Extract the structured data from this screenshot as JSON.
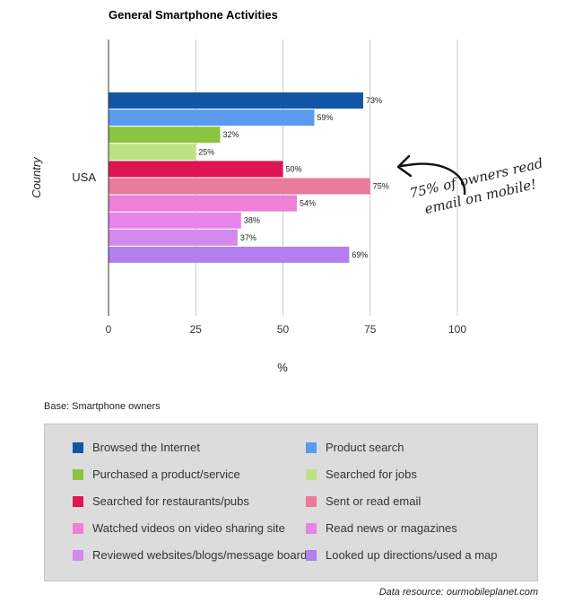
{
  "chart_data": {
    "type": "bar",
    "orientation": "horizontal",
    "title": "General Smartphone Activities",
    "xlabel": "%",
    "ylabel": "Country",
    "categories": [
      "USA"
    ],
    "xlim": [
      0,
      100
    ],
    "xticks": [
      0,
      25,
      50,
      75,
      100
    ],
    "grid": true,
    "legend_position": "bottom",
    "series": [
      {
        "name": "Browsed the Internet",
        "values": [
          73
        ],
        "color": "#1155a5"
      },
      {
        "name": "Product search",
        "values": [
          59
        ],
        "color": "#5a9bf0"
      },
      {
        "name": "Purchased a product/service",
        "values": [
          32
        ],
        "color": "#8bc540"
      },
      {
        "name": "Searched for jobs",
        "values": [
          25
        ],
        "color": "#bfe183"
      },
      {
        "name": "Searched for restaurants/pubs",
        "values": [
          50
        ],
        "color": "#df1553"
      },
      {
        "name": "Sent or read email",
        "values": [
          75
        ],
        "color": "#ea7b9b"
      },
      {
        "name": "Watched videos on video sharing site",
        "values": [
          54
        ],
        "color": "#ee80d5"
      },
      {
        "name": "Read news or magazines",
        "values": [
          38
        ],
        "color": "#e784ec"
      },
      {
        "name": "Reviewed websites/blogs/message boards",
        "values": [
          37
        ],
        "color": "#d38aec"
      },
      {
        "name": "Looked up directions/used a map",
        "values": [
          69
        ],
        "color": "#b37ff0"
      }
    ],
    "data_label_suffix": "%"
  },
  "notes": {
    "base": "Base: Smartphone owners",
    "source": "Data resource: ourmobileplanet.com",
    "annotation_line1": "75% of owners read",
    "annotation_line2": "email on mobile!"
  }
}
